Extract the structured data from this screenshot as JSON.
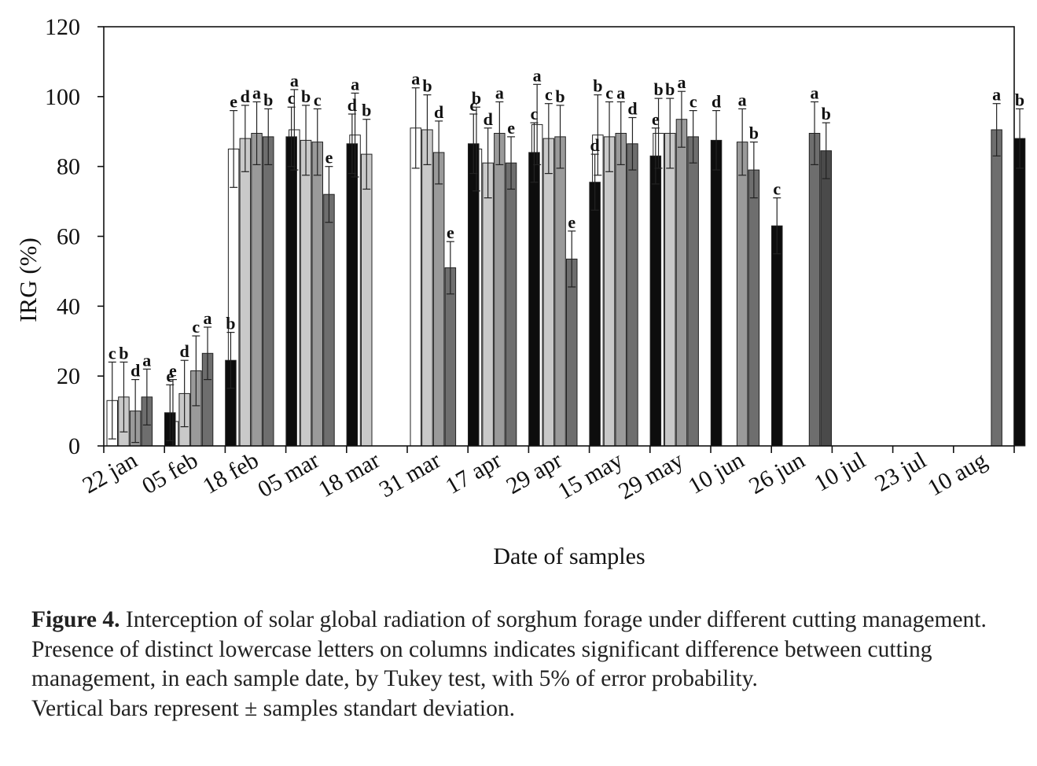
{
  "chart_data": {
    "type": "bar",
    "ylabel": "IRG (%)",
    "xlabel": "Date of samples",
    "ylim": [
      0,
      120
    ],
    "yticks": [
      0,
      20,
      40,
      60,
      80,
      100,
      120
    ],
    "grid": false,
    "legend": "none",
    "categories": [
      "22 jan",
      "05 feb",
      "18 feb",
      "05 mar",
      "18 mar",
      "31 mar",
      "17 apr",
      "29 apr",
      "15 may",
      "29 may",
      "10 jun",
      "26 jun",
      "10 jul",
      "23 jul",
      "10 aug"
    ],
    "series_fill_colors": [
      "#ffffff",
      "#c9c9c9",
      "#9a9a9a",
      "#6e6e6e",
      "#4a4a4a",
      "#0d0d0d"
    ],
    "series": [
      {
        "values": [
          13,
          7,
          85,
          90.5,
          89,
          91,
          85,
          92,
          89,
          89.5,
          null,
          null,
          null,
          null,
          null
        ],
        "errors": [
          11,
          12,
          11,
          11.5,
          12,
          11.5,
          12,
          11.5,
          11.5,
          10,
          null,
          null,
          null,
          null,
          null
        ],
        "letters": [
          "c",
          "e",
          "e",
          "a",
          "a",
          "a",
          "b",
          "a",
          "b",
          "b",
          "",
          "",
          "",
          "",
          ""
        ]
      },
      {
        "values": [
          14,
          15,
          88,
          87.5,
          83.5,
          90.5,
          81,
          88,
          88.5,
          89.5,
          null,
          null,
          null,
          null,
          null
        ],
        "errors": [
          10,
          9.5,
          9.5,
          10,
          10,
          10,
          10,
          10,
          10,
          10,
          null,
          null,
          null,
          null,
          null
        ],
        "letters": [
          "b",
          "d",
          "d",
          "b",
          "b",
          "b",
          "d",
          "c",
          "c",
          "b",
          "",
          "",
          "",
          "",
          ""
        ]
      },
      {
        "values": [
          10,
          21.5,
          89.5,
          87,
          null,
          84,
          89.5,
          88.5,
          89.5,
          93.5,
          87,
          null,
          null,
          null,
          null
        ],
        "errors": [
          9,
          10,
          9,
          9.5,
          null,
          9,
          9,
          9,
          9,
          8,
          9.5,
          null,
          null,
          null,
          null
        ],
        "letters": [
          "d",
          "c",
          "a",
          "c",
          "",
          "d",
          "a",
          "b",
          "a",
          "a",
          "a",
          "",
          "",
          "",
          ""
        ]
      },
      {
        "values": [
          14,
          26.5,
          88.5,
          72,
          null,
          51,
          81,
          53.5,
          86.5,
          88.5,
          79,
          89.5,
          null,
          null,
          90.5
        ],
        "errors": [
          8,
          7.5,
          8,
          8,
          null,
          7.5,
          7.5,
          8,
          7.5,
          7.5,
          8,
          9,
          null,
          null,
          7.5
        ],
        "letters": [
          "a",
          "a",
          "b",
          "e",
          "",
          "e",
          "e",
          "e",
          "d",
          "c",
          "b",
          "a",
          "",
          "",
          "a"
        ]
      },
      {
        "values": [
          null,
          null,
          null,
          null,
          null,
          null,
          null,
          null,
          null,
          null,
          null,
          84.5,
          null,
          null,
          null
        ],
        "errors": [
          null,
          null,
          null,
          null,
          null,
          null,
          null,
          null,
          null,
          null,
          null,
          8,
          null,
          null,
          null
        ],
        "letters": [
          "",
          "",
          "",
          "",
          "",
          "",
          "",
          "",
          "",
          "",
          "",
          "b",
          "",
          "",
          ""
        ]
      },
      {
        "values": [
          9.5,
          24.5,
          88.5,
          86.5,
          null,
          86.5,
          84,
          75.5,
          83,
          87.5,
          63,
          null,
          null,
          null,
          88
        ],
        "errors": [
          8,
          8,
          8.5,
          8.5,
          null,
          8.5,
          8.5,
          8,
          8,
          8.5,
          8,
          null,
          null,
          null,
          8.5
        ],
        "letters": [
          "e",
          "b",
          "c",
          "d",
          "",
          "c",
          "c",
          "d",
          "e",
          "d",
          "c",
          "",
          "",
          "",
          "b"
        ]
      }
    ]
  },
  "caption": {
    "label": "Figure 4.",
    "line1": " Interception of solar global radiation of sorghum forage under different cutting management.",
    "line2": "Presence of distinct lowercase letters on columns indicates significant difference between cutting management, in each sample date, by Tukey test, with 5% of error probability.",
    "line3": "Vertical bars represent ± samples standart deviation."
  }
}
